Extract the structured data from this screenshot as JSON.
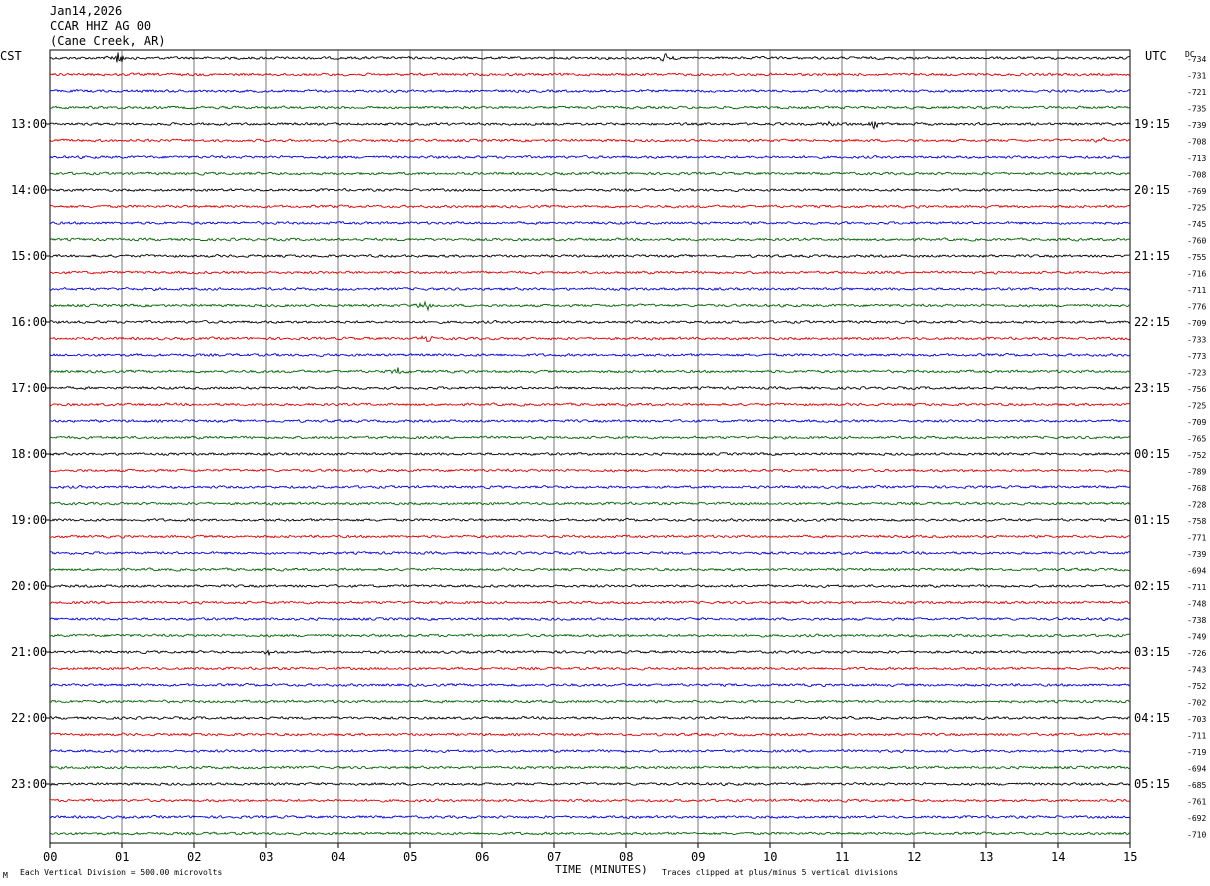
{
  "header": {
    "date": "Jan14,2026",
    "station": "CCAR HHZ AG 00",
    "location": "(Cane Creek, AR)"
  },
  "left_timezone": "CST",
  "right_timezone": "UTC",
  "dc_label": "DC",
  "footer": {
    "left_note": "Each Vertical Division =  500.00 microvolts",
    "right_note": "Traces clipped at plus/minus 5 vertical divisions",
    "corner_mark": "M"
  },
  "colors": {
    "trace_cycle": [
      "#000000",
      "#e00000",
      "#0000e0",
      "#006400"
    ],
    "grid": "#000000"
  },
  "chart_data": {
    "type": "line",
    "title": "",
    "xlabel": "TIME (MINUTES)",
    "xlim": [
      0,
      15
    ],
    "x_ticks": [
      "00",
      "01",
      "02",
      "03",
      "04",
      "05",
      "06",
      "07",
      "08",
      "09",
      "10",
      "11",
      "12",
      "13",
      "14",
      "15"
    ],
    "left_hour_labels": [
      "13:00",
      "14:00",
      "15:00",
      "16:00",
      "17:00",
      "18:00",
      "19:00",
      "20:00",
      "21:00",
      "22:00",
      "23:00"
    ],
    "right_hour_labels": [
      "19:15",
      "20:15",
      "21:15",
      "22:15",
      "23:15",
      "00:15",
      "01:15",
      "02:15",
      "03:15",
      "04:15",
      "05:15"
    ],
    "traces_per_hour": 4,
    "trace_count": 48,
    "dc_offsets": [
      -734,
      -731,
      -721,
      -735,
      -739,
      -708,
      -713,
      -708,
      -769,
      -725,
      -745,
      -760,
      -755,
      -716,
      -711,
      -776,
      -709,
      -733,
      -773,
      -723,
      -756,
      -725,
      -709,
      -765,
      -752,
      -789,
      -768,
      -728,
      -758,
      -771,
      -739,
      -694,
      -711,
      -748,
      -738,
      -749,
      -726,
      -743,
      -752,
      -702,
      -703,
      -711,
      -719,
      -694,
      -685,
      -761,
      -692,
      -710
    ],
    "events": [
      {
        "trace": 0,
        "minute": 0.95,
        "amplitude": 2.2
      },
      {
        "trace": 0,
        "minute": 8.55,
        "amplitude": 1.6
      },
      {
        "trace": 4,
        "minute": 10.9,
        "amplitude": 1.8
      },
      {
        "trace": 4,
        "minute": 11.45,
        "amplitude": 1.4
      },
      {
        "trace": 5,
        "minute": 14.6,
        "amplitude": 1.3
      },
      {
        "trace": 15,
        "minute": 5.2,
        "amplitude": 2.6
      },
      {
        "trace": 17,
        "minute": 5.25,
        "amplitude": 1.6
      },
      {
        "trace": 19,
        "minute": 4.85,
        "amplitude": 1.8
      },
      {
        "trace": 36,
        "minute": 3.05,
        "amplitude": 1.2
      }
    ]
  }
}
